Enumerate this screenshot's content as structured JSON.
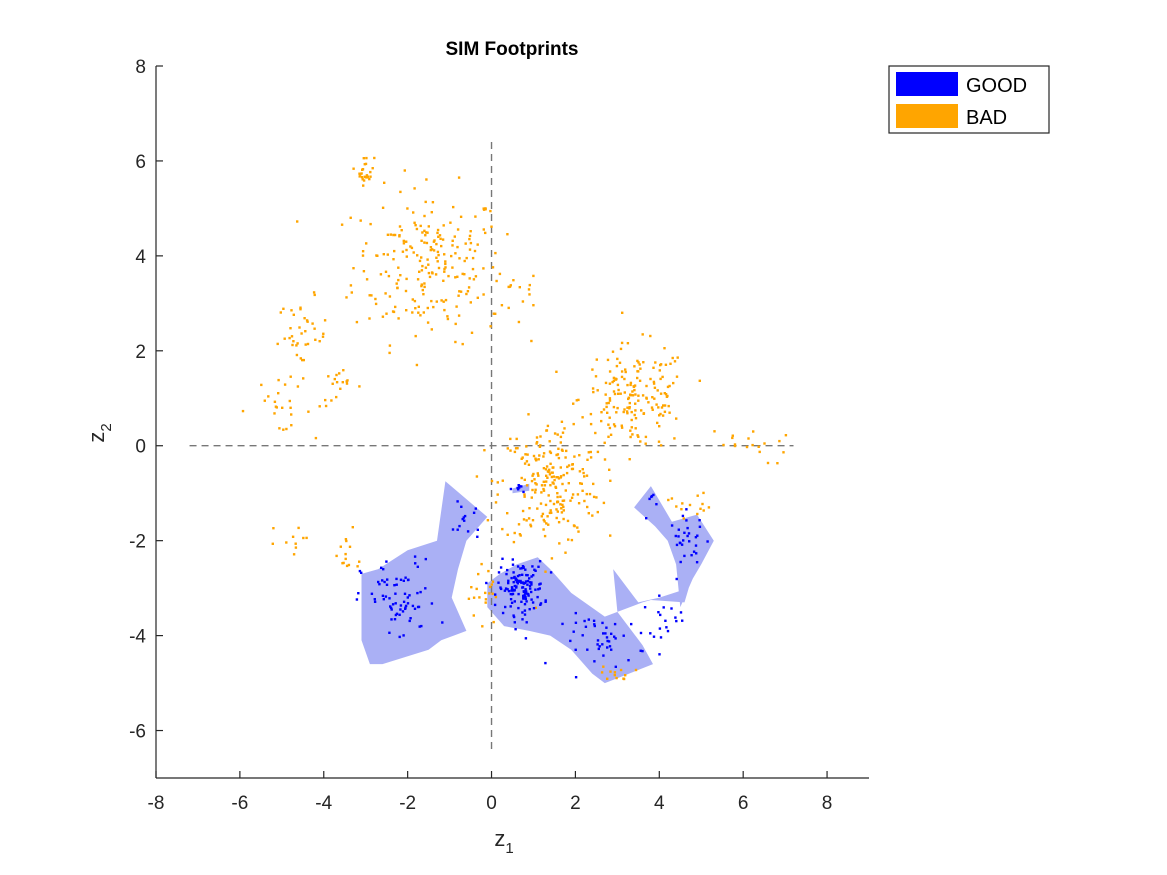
{
  "chart_data": {
    "type": "scatter",
    "title": "SIM Footprints",
    "xlabel": {
      "main": "z",
      "sub": "1"
    },
    "ylabel": {
      "main": "z",
      "sub": "2"
    },
    "xlim": [
      -8,
      9
    ],
    "ylim": [
      -7,
      8
    ],
    "xticks": [
      "-8",
      "-6",
      "-4",
      "-2",
      "0",
      "2",
      "4",
      "6",
      "8"
    ],
    "yticks": [
      "-6",
      "-4",
      "-2",
      "0",
      "2",
      "4",
      "6",
      "8"
    ],
    "reference_lines": {
      "vertical_x": 0,
      "horizontal_y": 0,
      "style": "dashed"
    },
    "legend": {
      "placement": "outside-top-right",
      "entries": [
        {
          "label": "GOOD",
          "color": "#0000ff"
        },
        {
          "label": "BAD",
          "color": "#ffa500"
        }
      ]
    },
    "footprint_fill_color": "#aab0f5",
    "good_footprints": [
      [
        [
          -1.1,
          -0.75
        ],
        [
          -0.1,
          -1.5
        ],
        [
          -0.6,
          -2.0
        ],
        [
          -0.8,
          -2.6
        ],
        [
          -0.95,
          -3.2
        ],
        [
          -0.6,
          -3.9
        ],
        [
          -1.2,
          -4.1
        ],
        [
          -1.5,
          -4.3
        ],
        [
          -2.6,
          -4.6
        ],
        [
          -2.9,
          -4.6
        ],
        [
          -3.1,
          -4.1
        ],
        [
          -3.1,
          -2.7
        ],
        [
          -2.7,
          -2.6
        ],
        [
          -2.0,
          -2.2
        ],
        [
          -1.3,
          -2.0
        ]
      ],
      [
        [
          0.2,
          -2.7
        ],
        [
          0.6,
          -2.5
        ],
        [
          1.1,
          -2.35
        ],
        [
          1.4,
          -2.6
        ],
        [
          1.9,
          -3.1
        ],
        [
          2.7,
          -3.6
        ],
        [
          3.6,
          -3.3
        ],
        [
          3.8,
          -3.25
        ],
        [
          4.6,
          -3.3
        ],
        [
          4.7,
          -3.0
        ],
        [
          4.0,
          -3.2
        ],
        [
          3.5,
          -3.3
        ],
        [
          2.9,
          -2.6
        ],
        [
          3.0,
          -3.5
        ],
        [
          3.6,
          -4.2
        ],
        [
          3.85,
          -4.6
        ],
        [
          3.0,
          -4.9
        ],
        [
          2.7,
          -5.0
        ],
        [
          2.4,
          -4.8
        ],
        [
          1.9,
          -4.3
        ],
        [
          1.4,
          -4.0
        ],
        [
          0.9,
          -3.9
        ],
        [
          0.3,
          -3.8
        ],
        [
          -0.1,
          -3.4
        ],
        [
          -0.1,
          -2.9
        ]
      ],
      [
        [
          3.4,
          -1.3
        ],
        [
          3.8,
          -0.85
        ],
        [
          4.3,
          -1.6
        ],
        [
          4.9,
          -1.45
        ],
        [
          5.3,
          -2.0
        ],
        [
          5.0,
          -2.5
        ],
        [
          4.8,
          -2.8
        ],
        [
          4.5,
          -3.4
        ],
        [
          4.4,
          -2.5
        ],
        [
          4.2,
          -2.0
        ],
        [
          3.9,
          -1.7
        ]
      ],
      [
        [
          0.5,
          -0.9
        ],
        [
          0.9,
          -0.8
        ],
        [
          0.9,
          -0.95
        ],
        [
          0.5,
          -1.0
        ]
      ]
    ],
    "good_points_regions": [
      {
        "cx": -2.2,
        "cy": -3.3,
        "rx": 0.9,
        "ry": 0.9,
        "n": 70
      },
      {
        "cx": -0.6,
        "cy": -1.5,
        "rx": 0.4,
        "ry": 0.6,
        "n": 14
      },
      {
        "cx": 0.7,
        "cy": -3.0,
        "rx": 0.55,
        "ry": 0.55,
        "n": 130
      },
      {
        "cx": 2.7,
        "cy": -4.1,
        "rx": 1.0,
        "ry": 0.55,
        "n": 45
      },
      {
        "cx": 4.1,
        "cy": -3.6,
        "rx": 0.5,
        "ry": 0.4,
        "n": 18
      },
      {
        "cx": 4.7,
        "cy": -2.0,
        "rx": 0.45,
        "ry": 0.55,
        "n": 30
      },
      {
        "cx": 3.8,
        "cy": -1.2,
        "rx": 0.2,
        "ry": 0.3,
        "n": 6
      },
      {
        "cx": 0.7,
        "cy": -0.9,
        "rx": 0.2,
        "ry": 0.1,
        "n": 8
      }
    ],
    "bad_points_regions": [
      {
        "cx": -1.5,
        "cy": 3.8,
        "rx": 1.8,
        "ry": 1.6,
        "n": 230
      },
      {
        "cx": -3.0,
        "cy": 5.8,
        "rx": 0.2,
        "ry": 0.3,
        "n": 25
      },
      {
        "cx": -4.5,
        "cy": 2.3,
        "rx": 0.6,
        "ry": 0.8,
        "n": 40
      },
      {
        "cx": -5.2,
        "cy": 0.8,
        "rx": 0.9,
        "ry": 0.5,
        "n": 20
      },
      {
        "cx": -3.6,
        "cy": 1.2,
        "rx": 0.5,
        "ry": 0.4,
        "n": 18
      },
      {
        "cx": 3.4,
        "cy": 1.0,
        "rx": 1.3,
        "ry": 1.1,
        "n": 180
      },
      {
        "cx": 1.4,
        "cy": -0.8,
        "rx": 1.2,
        "ry": 1.3,
        "n": 220
      },
      {
        "cx": 0.5,
        "cy": 3.0,
        "rx": 0.8,
        "ry": 0.7,
        "n": 12
      },
      {
        "cx": -3.5,
        "cy": -2.3,
        "rx": 0.6,
        "ry": 0.5,
        "n": 14
      },
      {
        "cx": -5.0,
        "cy": -2.0,
        "rx": 0.5,
        "ry": 0.3,
        "n": 10
      },
      {
        "cx": 6.0,
        "cy": 0.0,
        "rx": 1.1,
        "ry": 0.4,
        "n": 18
      },
      {
        "cx": 3.0,
        "cy": -4.8,
        "rx": 0.4,
        "ry": 0.15,
        "n": 12
      },
      {
        "cx": -0.2,
        "cy": -3.2,
        "rx": 0.35,
        "ry": 0.8,
        "n": 20
      },
      {
        "cx": 4.7,
        "cy": -1.2,
        "rx": 0.5,
        "ry": 0.3,
        "n": 14
      }
    ]
  }
}
